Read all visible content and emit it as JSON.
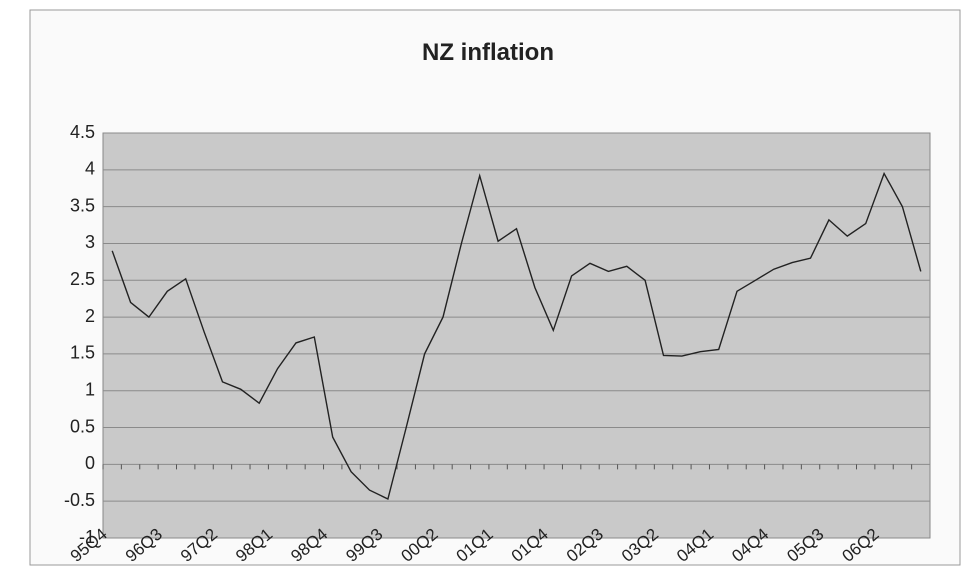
{
  "chart_data": {
    "type": "line",
    "title": "NZ inflation",
    "categories": [
      "95Q4",
      null,
      null,
      "96Q3",
      null,
      null,
      "97Q2",
      null,
      null,
      "98Q1",
      null,
      null,
      "98Q4",
      null,
      null,
      "99Q3",
      null,
      null,
      "00Q2",
      null,
      null,
      "01Q1",
      null,
      null,
      "01Q4",
      null,
      null,
      "02Q3",
      null,
      null,
      "03Q2",
      null,
      null,
      "04Q1",
      null,
      null,
      "04Q4",
      null,
      null,
      "05Q3",
      null,
      null,
      "06Q2",
      null,
      null
    ],
    "values": [
      2.9,
      2.2,
      2.0,
      2.35,
      2.52,
      1.8,
      1.12,
      1.02,
      0.83,
      1.3,
      1.65,
      1.73,
      0.37,
      -0.1,
      -0.35,
      -0.47,
      0.5,
      1.5,
      2.0,
      3.0,
      3.92,
      3.03,
      3.2,
      2.4,
      1.82,
      2.56,
      2.73,
      2.62,
      2.69,
      2.5,
      1.48,
      1.47,
      1.53,
      1.56,
      2.35,
      2.5,
      2.65,
      2.74,
      2.8,
      3.32,
      3.1,
      3.27,
      3.95,
      3.5,
      2.62
    ],
    "color": "#222222",
    "ylim": [
      -1,
      4.5
    ],
    "yticks": [
      -1,
      -0.5,
      0,
      0.5,
      1,
      1.5,
      2,
      2.5,
      3,
      3.5,
      4,
      4.5
    ],
    "grid": true
  }
}
